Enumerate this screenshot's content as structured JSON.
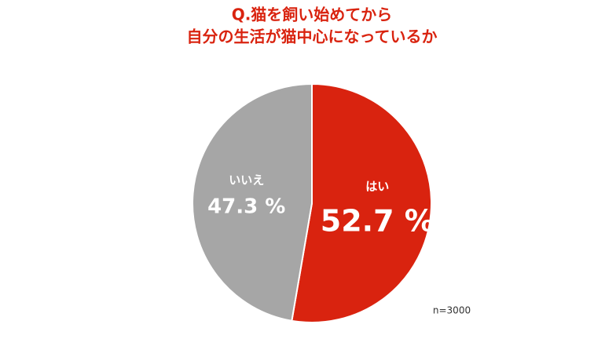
{
  "chart_data": {
    "type": "pie",
    "title": [
      "Q.猫を飼い始めてから",
      "自分の生活が猫中心になっているか"
    ],
    "categories": [
      "はい",
      "いいえ"
    ],
    "values": [
      52.7,
      47.3
    ],
    "value_labels": [
      "52.7 %",
      "47.3 %"
    ],
    "colors": [
      "#d9230f",
      "#a6a6a6"
    ],
    "note": "n=3000"
  }
}
